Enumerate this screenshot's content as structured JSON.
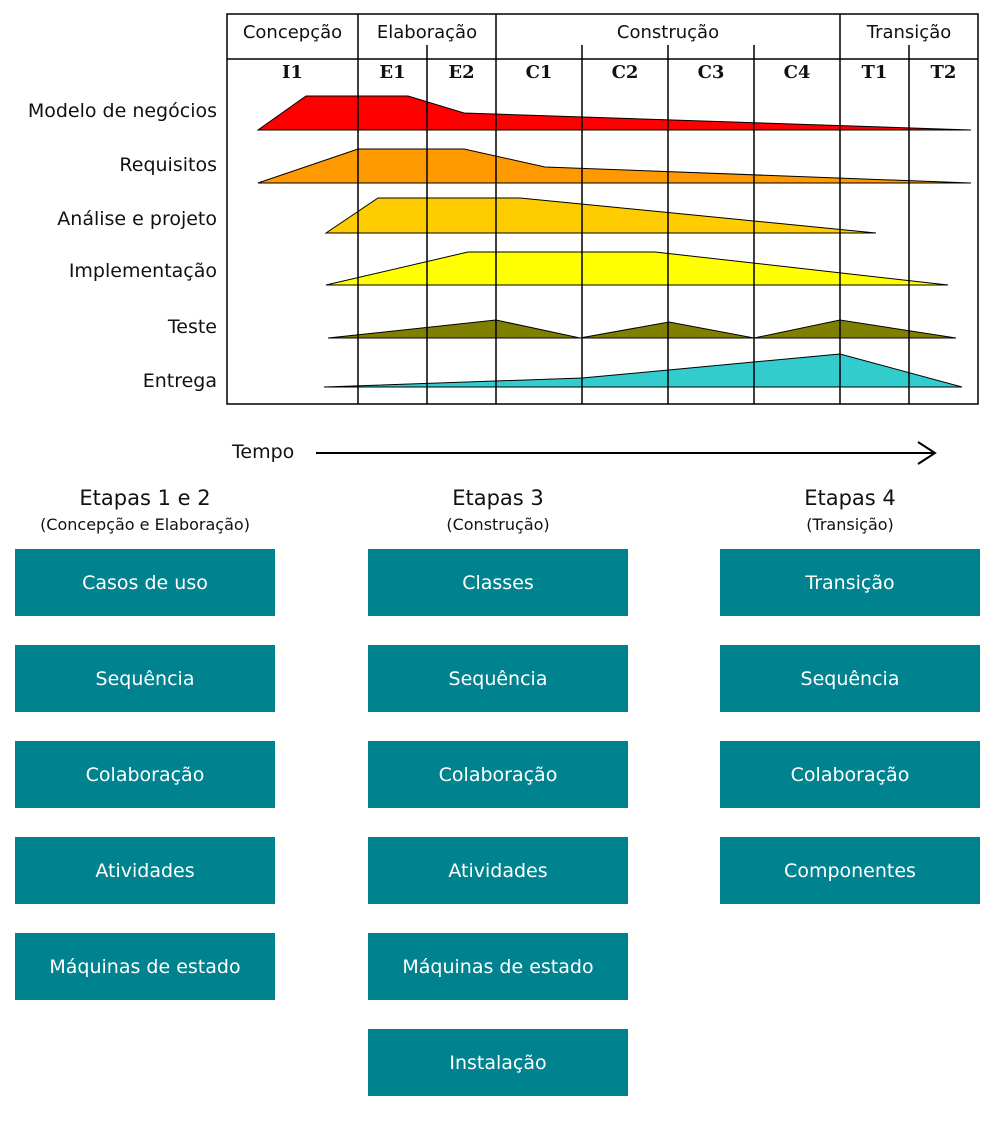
{
  "phases": [
    {
      "name": "Concepção",
      "iterations": [
        "I1"
      ]
    },
    {
      "name": "Elaboração",
      "iterations": [
        "E1",
        "E2"
      ]
    },
    {
      "name": "Construção",
      "iterations": [
        "C1",
        "C2",
        "C3",
        "C4"
      ]
    },
    {
      "name": "Transição",
      "iterations": [
        "T1",
        "T2"
      ]
    }
  ],
  "disciplines": [
    {
      "name": "Modelo de negócios",
      "color": "#ff0000"
    },
    {
      "name": "Requisitos",
      "color": "#ff9900"
    },
    {
      "name": "Análise e projeto",
      "color": "#ffcc00"
    },
    {
      "name": "Implementação",
      "color": "#ffff00"
    },
    {
      "name": "Teste",
      "color": "#808000"
    },
    {
      "name": "Entrega",
      "color": "#33cccc"
    }
  ],
  "time_label": "Tempo",
  "stages": [
    {
      "title": "Etapas 1 e 2",
      "subtitle": "(Concepção e Elaboração)",
      "items": [
        "Casos de uso",
        "Sequência",
        "Colaboração",
        "Atividades",
        "Máquinas de estado"
      ]
    },
    {
      "title": "Etapas 3",
      "subtitle": "(Construção)",
      "items": [
        "Classes",
        "Sequência",
        "Colaboração",
        "Atividades",
        "Máquinas de estado",
        "Instalação"
      ]
    },
    {
      "title": "Etapas 4",
      "subtitle": "(Transição)",
      "items": [
        "Transição",
        "Sequência",
        "Colaboração",
        "Componentes"
      ]
    }
  ],
  "colors": {
    "box": "#00838f",
    "box_text": "#ffffff"
  }
}
